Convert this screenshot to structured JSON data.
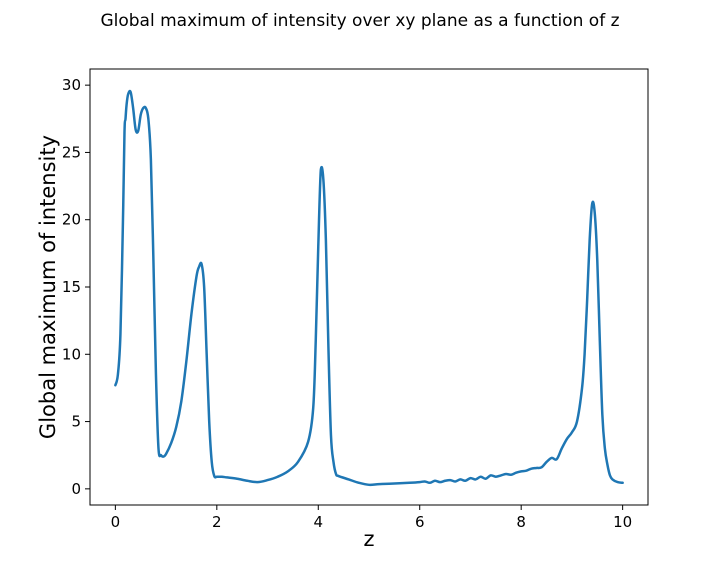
{
  "chart_data": {
    "type": "line",
    "title": "Global maximum of intensity over xy plane as a function of z",
    "xlabel": "z",
    "ylabel": "Global maximum of intensity",
    "xlim": [
      -0.5,
      10.5
    ],
    "ylim": [
      -1.2,
      31.2
    ],
    "x_ticks": [
      0,
      2,
      4,
      6,
      8,
      10
    ],
    "y_ticks": [
      0,
      5,
      10,
      15,
      20,
      25,
      30
    ],
    "x_tick_labels": [
      "0",
      "2",
      "4",
      "6",
      "8",
      "10"
    ],
    "y_tick_labels": [
      "0",
      "5",
      "10",
      "15",
      "20",
      "25",
      "30"
    ],
    "grid": false,
    "line_color": "#1f77b4",
    "series": [
      {
        "x": [
          0.0,
          0.05,
          0.1,
          0.15,
          0.18,
          0.2,
          0.22,
          0.25,
          0.3,
          0.35,
          0.4,
          0.45,
          0.5,
          0.55,
          0.6,
          0.65,
          0.7,
          0.75,
          0.8,
          0.85,
          0.9,
          0.95,
          1.0,
          1.1,
          1.2,
          1.3,
          1.4,
          1.5,
          1.6,
          1.65,
          1.7,
          1.75,
          1.8,
          1.85,
          1.9,
          1.95,
          2.0,
          2.05,
          2.1,
          2.2,
          2.4,
          2.6,
          2.8,
          3.0,
          3.2,
          3.4,
          3.6,
          3.8,
          3.9,
          3.95,
          4.0,
          4.05,
          4.1,
          4.15,
          4.2,
          4.25,
          4.3,
          4.35,
          4.4,
          4.6,
          4.8,
          5.0,
          5.2,
          5.5,
          5.8,
          6.0,
          6.1,
          6.2,
          6.3,
          6.4,
          6.5,
          6.6,
          6.7,
          6.8,
          6.9,
          7.0,
          7.1,
          7.2,
          7.3,
          7.4,
          7.5,
          7.6,
          7.7,
          7.8,
          7.9,
          8.0,
          8.1,
          8.2,
          8.3,
          8.4,
          8.5,
          8.6,
          8.7,
          8.8,
          8.9,
          9.0,
          9.1,
          9.2,
          9.25,
          9.3,
          9.35,
          9.4,
          9.45,
          9.5,
          9.55,
          9.6,
          9.65,
          9.7,
          9.75,
          9.8,
          9.9,
          10.0
        ],
        "y": [
          7.7,
          8.5,
          11.5,
          20.0,
          26.5,
          27.5,
          28.5,
          29.3,
          29.5,
          28.3,
          26.7,
          26.6,
          27.8,
          28.3,
          28.3,
          27.5,
          24.5,
          17.0,
          8.5,
          3.0,
          2.5,
          2.4,
          2.6,
          3.4,
          4.6,
          6.5,
          9.5,
          13.0,
          15.8,
          16.5,
          16.7,
          15.0,
          10.0,
          5.0,
          2.0,
          0.95,
          0.9,
          0.9,
          0.9,
          0.85,
          0.75,
          0.6,
          0.5,
          0.65,
          0.9,
          1.3,
          2.0,
          3.5,
          6.0,
          11.0,
          18.0,
          23.7,
          23.0,
          18.5,
          10.5,
          4.0,
          2.0,
          1.1,
          0.95,
          0.7,
          0.45,
          0.3,
          0.35,
          0.4,
          0.45,
          0.5,
          0.55,
          0.45,
          0.6,
          0.5,
          0.6,
          0.65,
          0.55,
          0.7,
          0.6,
          0.8,
          0.7,
          0.9,
          0.75,
          1.0,
          0.9,
          1.0,
          1.1,
          1.05,
          1.2,
          1.3,
          1.35,
          1.5,
          1.55,
          1.6,
          2.0,
          2.3,
          2.2,
          3.0,
          3.7,
          4.2,
          5.0,
          7.5,
          10.0,
          14.0,
          18.5,
          21.2,
          20.5,
          17.0,
          11.0,
          5.5,
          3.0,
          1.8,
          1.0,
          0.7,
          0.5,
          0.45
        ]
      }
    ]
  }
}
